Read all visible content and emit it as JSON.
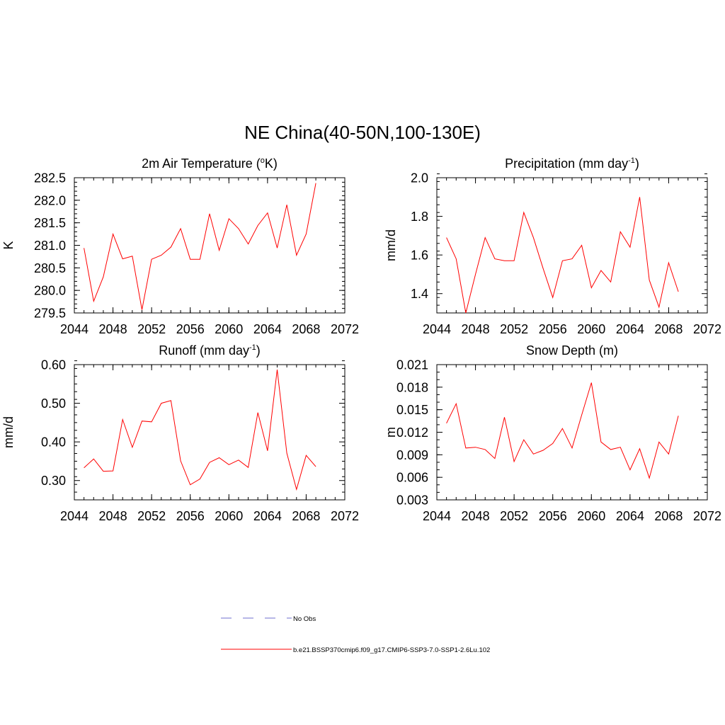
{
  "suptitle": "NE China(40-50N,100-130E)",
  "colors": {
    "model": "#ff0000",
    "obs": "#9f9fdf"
  },
  "legend": {
    "obs_label": "No Obs",
    "model_label": "b.e21.BSSP370cmip6.f09_g17.CMIP6-SSP3-7.0-SSP1-2.6Lu.102"
  },
  "chart_data": [
    {
      "type": "line",
      "title": "2m Air Temperature (",
      "title_sup": "o",
      "title_tail": "K)",
      "ylabel": "K",
      "xlim": [
        2044,
        2072
      ],
      "ylim": [
        279.5,
        282.5
      ],
      "xticks": [
        2044,
        2048,
        2052,
        2056,
        2060,
        2064,
        2068,
        2072
      ],
      "xminor": 1,
      "yticks": [
        "279.5",
        "280.0",
        "280.5",
        "281.0",
        "281.5",
        "282.0",
        "282.5"
      ],
      "yminor": 0.1,
      "x": [
        2045,
        2046,
        2047,
        2048,
        2049,
        2050,
        2051,
        2052,
        2053,
        2054,
        2055,
        2056,
        2057,
        2058,
        2059,
        2060,
        2061,
        2062,
        2063,
        2064,
        2065,
        2066,
        2067,
        2068,
        2069
      ],
      "series": [
        {
          "name": "b.e21.BSSP370cmip6.f09_g17.CMIP6-SSP3-7.0-SSP1-2.6Lu.102",
          "values": [
            280.94,
            279.76,
            280.3,
            281.25,
            280.7,
            280.76,
            279.57,
            280.69,
            280.78,
            280.96,
            281.37,
            280.69,
            280.69,
            281.7,
            280.89,
            281.59,
            281.37,
            281.03,
            281.44,
            281.72,
            280.94,
            281.9,
            280.78,
            281.25,
            282.38
          ]
        }
      ]
    },
    {
      "type": "line",
      "title": "Precipitation (mm day",
      "title_sup": "-1",
      "title_tail": ")",
      "ylabel": "mm/d",
      "xlim": [
        2044,
        2072
      ],
      "ylim": [
        1.3,
        2.0
      ],
      "xticks": [
        2044,
        2048,
        2052,
        2056,
        2060,
        2064,
        2068,
        2072
      ],
      "xminor": 1,
      "yticks": [
        "1.4",
        "1.6",
        "1.8",
        "2.0"
      ],
      "yticks_at": [
        1.4,
        1.6,
        1.8,
        2.0
      ],
      "yminor": 0.04,
      "x": [
        2045,
        2046,
        2047,
        2048,
        2049,
        2050,
        2051,
        2052,
        2053,
        2054,
        2055,
        2056,
        2057,
        2058,
        2059,
        2060,
        2061,
        2062,
        2063,
        2064,
        2065,
        2066,
        2067,
        2068,
        2069
      ],
      "series": [
        {
          "name": "b.e21.BSSP370cmip6.f09_g17.CMIP6-SSP3-7.0-SSP1-2.6Lu.102",
          "values": [
            1.69,
            1.58,
            1.3,
            1.5,
            1.69,
            1.58,
            1.57,
            1.57,
            1.82,
            1.69,
            1.53,
            1.38,
            1.57,
            1.58,
            1.65,
            1.43,
            1.52,
            1.46,
            1.72,
            1.64,
            1.9,
            1.47,
            1.33,
            1.56,
            1.41
          ]
        }
      ]
    },
    {
      "type": "line",
      "title": "Runoff (mm day",
      "title_sup": "-1",
      "title_tail": ")",
      "ylabel": "mm/d",
      "xlim": [
        2044,
        2072
      ],
      "ylim": [
        0.25,
        0.6
      ],
      "xticks": [
        2044,
        2048,
        2052,
        2056,
        2060,
        2064,
        2068,
        2072
      ],
      "xminor": 1,
      "yticks": [
        "0.30",
        "0.40",
        "0.50",
        "0.60"
      ],
      "yticks_at": [
        0.3,
        0.4,
        0.5,
        0.6
      ],
      "yminor": 0.02,
      "x": [
        2045,
        2046,
        2047,
        2048,
        2049,
        2050,
        2051,
        2052,
        2053,
        2054,
        2055,
        2056,
        2057,
        2058,
        2059,
        2060,
        2061,
        2062,
        2063,
        2064,
        2065,
        2066,
        2067,
        2068,
        2069
      ],
      "series": [
        {
          "name": "b.e21.BSSP370cmip6.f09_g17.CMIP6-SSP3-7.0-SSP1-2.6Lu.102",
          "values": [
            0.333,
            0.356,
            0.324,
            0.325,
            0.458,
            0.386,
            0.454,
            0.452,
            0.5,
            0.507,
            0.351,
            0.289,
            0.304,
            0.347,
            0.359,
            0.341,
            0.353,
            0.334,
            0.476,
            0.377,
            0.587,
            0.371,
            0.277,
            0.365,
            0.336
          ]
        }
      ]
    },
    {
      "type": "line",
      "title": "Snow Depth (m)",
      "title_sup": "",
      "title_tail": "",
      "ylabel": "m",
      "xlim": [
        2044,
        2072
      ],
      "ylim": [
        0.003,
        0.021
      ],
      "xticks": [
        2044,
        2048,
        2052,
        2056,
        2060,
        2064,
        2068,
        2072
      ],
      "xminor": 1,
      "yticks": [
        "0.003",
        "0.006",
        "0.009",
        "0.012",
        "0.015",
        "0.018",
        "0.021"
      ],
      "yminor": 0.001,
      "x": [
        2045,
        2046,
        2047,
        2048,
        2049,
        2050,
        2051,
        2052,
        2053,
        2054,
        2055,
        2056,
        2057,
        2058,
        2059,
        2060,
        2061,
        2062,
        2063,
        2064,
        2065,
        2066,
        2067,
        2068,
        2069
      ],
      "series": [
        {
          "name": "b.e21.BSSP370cmip6.f09_g17.CMIP6-SSP3-7.0-SSP1-2.6Lu.102",
          "values": [
            0.0132,
            0.0158,
            0.0099,
            0.01,
            0.0097,
            0.0085,
            0.014,
            0.0081,
            0.011,
            0.0091,
            0.0096,
            0.0105,
            0.0125,
            0.0099,
            0.0143,
            0.0186,
            0.0107,
            0.0097,
            0.01,
            0.007,
            0.0098,
            0.0059,
            0.0107,
            0.0091,
            0.0142
          ]
        }
      ]
    }
  ]
}
